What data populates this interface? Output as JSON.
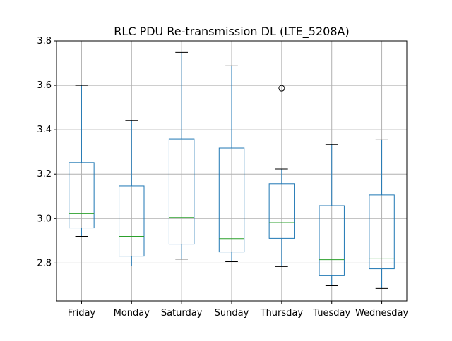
{
  "chart_data": {
    "type": "box",
    "title": "RLC PDU Re-transmission DL (LTE_5208A)",
    "xlabel": "",
    "ylabel": "",
    "ylim": [
      2.63,
      3.8
    ],
    "yticks": [
      2.8,
      3.0,
      3.2,
      3.4,
      3.6,
      3.8
    ],
    "ytick_labels": [
      "2.8",
      "3.0",
      "3.2",
      "3.4",
      "3.6",
      "3.8"
    ],
    "grid": true,
    "categories": [
      "Friday",
      "Monday",
      "Saturday",
      "Sunday",
      "Thursday",
      "Tuesday",
      "Wednesday"
    ],
    "boxes": [
      {
        "label": "Friday",
        "whisker_low": 2.92,
        "q1": 2.958,
        "median": 3.022,
        "q3": 3.252,
        "whisker_high": 3.6,
        "outliers": []
      },
      {
        "label": "Monday",
        "whisker_low": 2.787,
        "q1": 2.831,
        "median": 2.92,
        "q3": 3.147,
        "whisker_high": 3.441,
        "outliers": []
      },
      {
        "label": "Saturday",
        "whisker_low": 2.818,
        "q1": 2.885,
        "median": 3.005,
        "q3": 3.359,
        "whisker_high": 3.748,
        "outliers": []
      },
      {
        "label": "Sunday",
        "whisker_low": 2.806,
        "q1": 2.85,
        "median": 2.91,
        "q3": 3.318,
        "whisker_high": 3.688,
        "outliers": []
      },
      {
        "label": "Thursday",
        "whisker_low": 2.784,
        "q1": 2.911,
        "median": 2.982,
        "q3": 3.157,
        "whisker_high": 3.223,
        "outliers": [
          3.587
        ]
      },
      {
        "label": "Tuesday",
        "whisker_low": 2.698,
        "q1": 2.743,
        "median": 2.815,
        "q3": 3.058,
        "whisker_high": 3.333,
        "outliers": []
      },
      {
        "label": "Wednesday",
        "whisker_low": 2.686,
        "q1": 2.774,
        "median": 2.819,
        "q3": 3.106,
        "whisker_high": 3.355,
        "outliers": []
      }
    ],
    "colors": {
      "box": "#1f77b4",
      "median": "#2ca02c",
      "whisker": "#000000",
      "grid": "#b0b0b0",
      "outlier": "#000000"
    }
  }
}
